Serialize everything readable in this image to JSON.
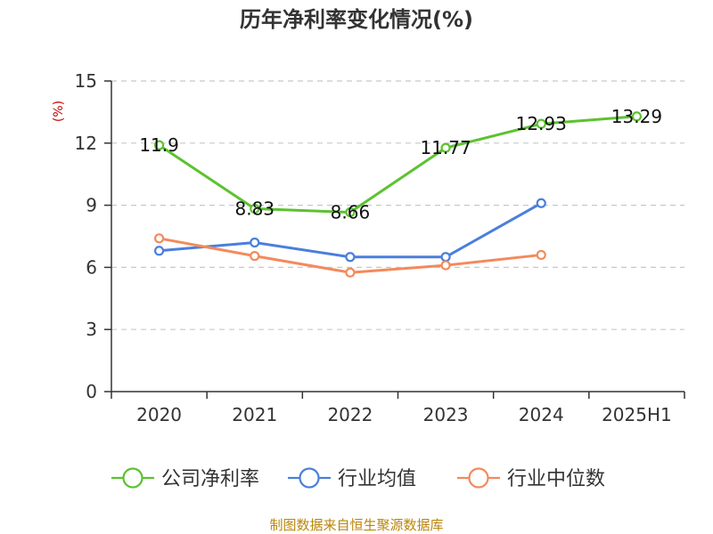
{
  "chart_data": {
    "type": "line",
    "title": "历年净利率变化情况(%)",
    "ylabel": "(%)",
    "categories": [
      "2020",
      "2021",
      "2022",
      "2023",
      "2024",
      "2025H1"
    ],
    "ylim": [
      0,
      15
    ],
    "yticks": [
      0,
      3,
      6,
      9,
      12,
      15
    ],
    "grid": true,
    "legend_position": "bottom",
    "series": [
      {
        "name": "公司净利率",
        "values": [
          11.9,
          8.83,
          8.66,
          11.77,
          12.93,
          13.29
        ],
        "color": "#5cc230",
        "show_labels": true,
        "labels": [
          "11.9",
          "8.83",
          "8.66",
          "11.77",
          "12.93",
          "13.29"
        ]
      },
      {
        "name": "行业均值",
        "values": [
          6.8,
          7.2,
          6.5,
          6.5,
          9.1,
          null
        ],
        "color": "#4a7fdc",
        "show_labels": false
      },
      {
        "name": "行业中位数",
        "values": [
          7.4,
          6.55,
          5.75,
          6.1,
          6.6,
          null
        ],
        "color": "#f38a5c",
        "show_labels": false
      }
    ]
  },
  "source_text": "制图数据来自恒生聚源数据库"
}
